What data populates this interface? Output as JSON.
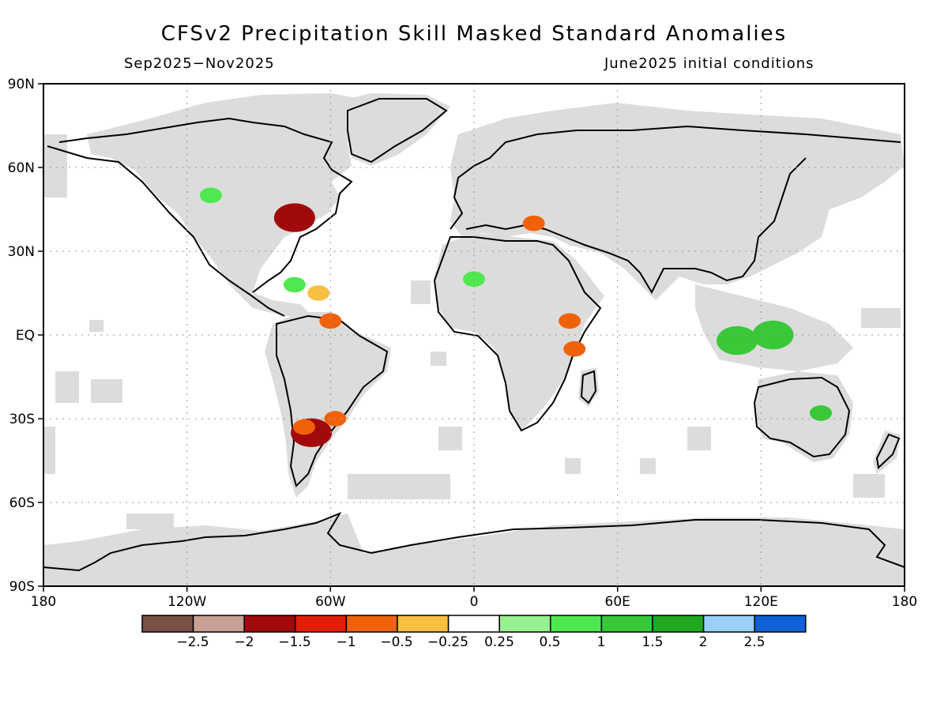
{
  "title": "CFSv2 Precipitation Skill Masked Standard Anomalies",
  "subtitle_left": "Sep2025−Nov2025",
  "subtitle_right": "June2025 initial conditions",
  "axes": {
    "x_ticks": [
      "180",
      "120W",
      "60W",
      "0",
      "60E",
      "120E",
      "180"
    ],
    "y_ticks": [
      "90N",
      "60N",
      "30N",
      "EQ",
      "30S",
      "60S",
      "90S"
    ]
  },
  "colorbar": {
    "colors": [
      "#7a4f45",
      "#c9a095",
      "#a00a0a",
      "#e01e0a",
      "#f0620a",
      "#f8c040",
      "#ffffff",
      "#98f090",
      "#50e850",
      "#38c838",
      "#20a820",
      "#98d0f8",
      "#1060d8"
    ],
    "labels": [
      "−2.5",
      "−2",
      "−1.5",
      "−1",
      "−0.5",
      "−0.25",
      "0.25",
      "0.5",
      "1",
      "1.5",
      "2",
      "2.5"
    ]
  },
  "colors": {
    "land": "#000000",
    "mask": "#dcdcdc",
    "ocean": "#ffffff",
    "grid": "#999999"
  },
  "anomalies": [
    {
      "lon": -75,
      "lat": 42,
      "value": -1.7
    },
    {
      "lon": -68,
      "lat": -35,
      "value": -1.7
    },
    {
      "lon": -71,
      "lat": -33,
      "value": -1.0
    },
    {
      "lon": -60,
      "lat": 5,
      "value": -0.6
    },
    {
      "lon": -58,
      "lat": -30,
      "value": -0.8
    },
    {
      "lon": -65,
      "lat": 15,
      "value": -0.5
    },
    {
      "lon": 40,
      "lat": 5,
      "value": -0.8
    },
    {
      "lon": 42,
      "lat": -5,
      "value": -0.9
    },
    {
      "lon": 25,
      "lat": 40,
      "value": -0.6
    },
    {
      "lon": 110,
      "lat": -2,
      "value": 1.3
    },
    {
      "lon": 125,
      "lat": 0,
      "value": 1.4
    },
    {
      "lon": 145,
      "lat": -28,
      "value": 1.0
    },
    {
      "lon": -110,
      "lat": 50,
      "value": 0.6
    },
    {
      "lon": -75,
      "lat": 18,
      "value": 0.7
    },
    {
      "lon": 0,
      "lat": 20,
      "value": 0.5
    }
  ]
}
